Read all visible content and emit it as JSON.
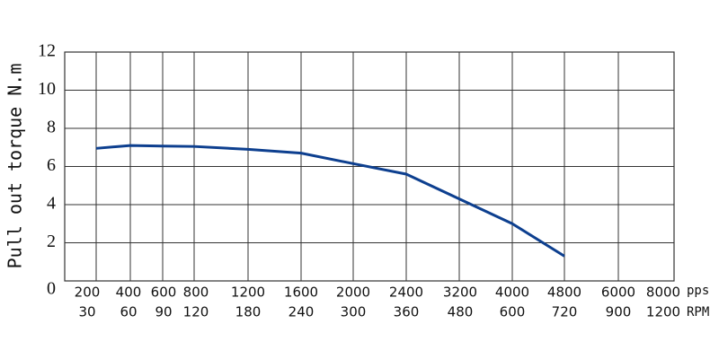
{
  "chart_data": {
    "type": "line",
    "y_label": "Pull out torque N.m",
    "categories": [
      "200",
      "400",
      "600",
      "800",
      "1200",
      "1600",
      "2000",
      "2400",
      "3200",
      "4000",
      "4800",
      "6000",
      "8000"
    ],
    "categories_rpm": [
      "30",
      "60",
      "90",
      "120",
      "180",
      "240",
      "300",
      "360",
      "480",
      "600",
      "720",
      "900",
      "1200"
    ],
    "x_unit": "pps",
    "x2_unit": "RPM",
    "series": [
      {
        "name": "torque",
        "color": "#0d3f8f",
        "values": [
          6.95,
          7.1,
          7.07,
          7.05,
          6.9,
          6.7,
          6.15,
          5.6,
          4.3,
          3.0,
          1.3,
          null,
          null
        ]
      }
    ],
    "ylim": [
      0,
      12
    ],
    "yticks": [
      0,
      2,
      4,
      6,
      8,
      10,
      12
    ],
    "grid": true
  }
}
